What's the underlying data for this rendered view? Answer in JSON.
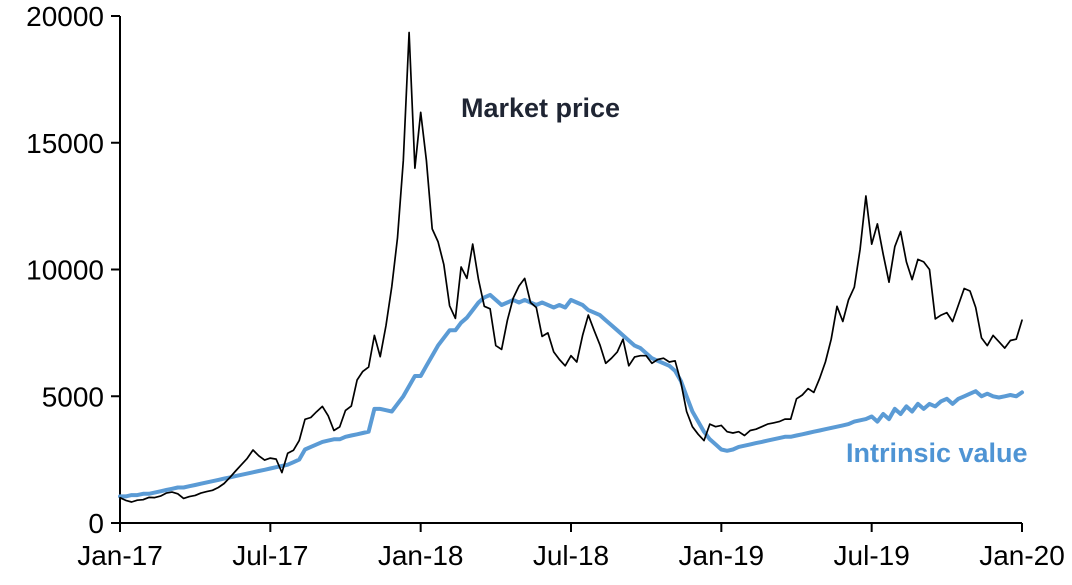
{
  "chart_data": {
    "type": "line",
    "title": "",
    "xlabel": "",
    "ylabel": "",
    "ylim": [
      0,
      20000
    ],
    "y_ticks": [
      0,
      5000,
      10000,
      15000,
      20000
    ],
    "x_tick_labels": [
      "Jan-17",
      "Jul-17",
      "Jan-18",
      "Jul-18",
      "Jan-19",
      "Jul-19",
      "Jan-20"
    ],
    "x_tick_indices": [
      0,
      26,
      52,
      78,
      104,
      130,
      156
    ],
    "grid": false,
    "legend_position": "inline-annotations",
    "axis_color": "#000000",
    "series": [
      {
        "name": "Market price",
        "color": "#000000",
        "stroke_width": 1.7,
        "values": [
          998,
          890,
          830,
          900,
          920,
          1010,
          1000,
          1060,
          1180,
          1220,
          1150,
          970,
          1040,
          1090,
          1180,
          1240,
          1290,
          1400,
          1560,
          1800,
          2050,
          2300,
          2550,
          2880,
          2650,
          2480,
          2560,
          2520,
          1990,
          2750,
          2870,
          3250,
          4090,
          4160,
          4390,
          4600,
          4230,
          3650,
          3790,
          4440,
          4610,
          5640,
          5980,
          6150,
          7400,
          6560,
          7790,
          9330,
          11250,
          14290,
          19350,
          14000,
          16200,
          14300,
          11600,
          11100,
          10200,
          8570,
          8070,
          10100,
          9650,
          11000,
          9600,
          8550,
          8450,
          7000,
          6850,
          8000,
          8870,
          9350,
          9650,
          8700,
          8500,
          7360,
          7500,
          6750,
          6450,
          6200,
          6600,
          6350,
          7400,
          8200,
          7600,
          7030,
          6300,
          6500,
          6750,
          7250,
          6200,
          6550,
          6600,
          6600,
          6300,
          6450,
          6500,
          6350,
          6400,
          5550,
          4400,
          3800,
          3500,
          3250,
          3900,
          3800,
          3850,
          3600,
          3550,
          3600,
          3450,
          3650,
          3700,
          3800,
          3900,
          3950,
          4000,
          4100,
          4100,
          4900,
          5050,
          5300,
          5150,
          5700,
          6350,
          7250,
          8550,
          7950,
          8800,
          9300,
          10800,
          12900,
          11000,
          11800,
          10600,
          9500,
          10900,
          11500,
          10300,
          9600,
          10400,
          10300,
          10000,
          8050,
          8200,
          8300,
          7950,
          8600,
          9250,
          9150,
          8500,
          7300,
          7000,
          7400,
          7150,
          6900,
          7200,
          7250,
          8000
        ]
      },
      {
        "name": "Intrinsic value",
        "color": "#5b9bd5",
        "stroke_width": 4,
        "values": [
          1050,
          1050,
          1100,
          1100,
          1150,
          1150,
          1200,
          1250,
          1300,
          1350,
          1400,
          1400,
          1450,
          1500,
          1550,
          1600,
          1650,
          1700,
          1750,
          1800,
          1850,
          1900,
          1950,
          2000,
          2050,
          2100,
          2150,
          2200,
          2250,
          2300,
          2400,
          2500,
          2900,
          3000,
          3100,
          3200,
          3250,
          3300,
          3300,
          3400,
          3450,
          3500,
          3550,
          3600,
          4500,
          4500,
          4450,
          4400,
          4700,
          5000,
          5400,
          5800,
          5800,
          6200,
          6600,
          7000,
          7300,
          7600,
          7600,
          7900,
          8100,
          8400,
          8700,
          8900,
          9000,
          8800,
          8600,
          8700,
          8800,
          8700,
          8800,
          8700,
          8600,
          8700,
          8600,
          8500,
          8600,
          8500,
          8800,
          8700,
          8600,
          8400,
          8300,
          8200,
          8000,
          7800,
          7600,
          7400,
          7200,
          7000,
          6900,
          6700,
          6500,
          6400,
          6300,
          6200,
          6000,
          5600,
          5000,
          4400,
          4000,
          3600,
          3300,
          3100,
          2900,
          2850,
          2900,
          3000,
          3050,
          3100,
          3150,
          3200,
          3250,
          3300,
          3350,
          3400,
          3400,
          3450,
          3500,
          3550,
          3600,
          3650,
          3700,
          3750,
          3800,
          3850,
          3900,
          4000,
          4050,
          4100,
          4200,
          4000,
          4300,
          4100,
          4500,
          4300,
          4600,
          4400,
          4700,
          4500,
          4700,
          4600,
          4800,
          4900,
          4700,
          4900,
          5000,
          5100,
          5200,
          5000,
          5100,
          5000,
          4950,
          5000,
          5050,
          5000,
          5150
        ]
      }
    ],
    "annotations": [
      {
        "text": "Market price",
        "color": "#1f2533"
      },
      {
        "text": "Intrinsic value",
        "color": "#4e94d4"
      }
    ]
  }
}
